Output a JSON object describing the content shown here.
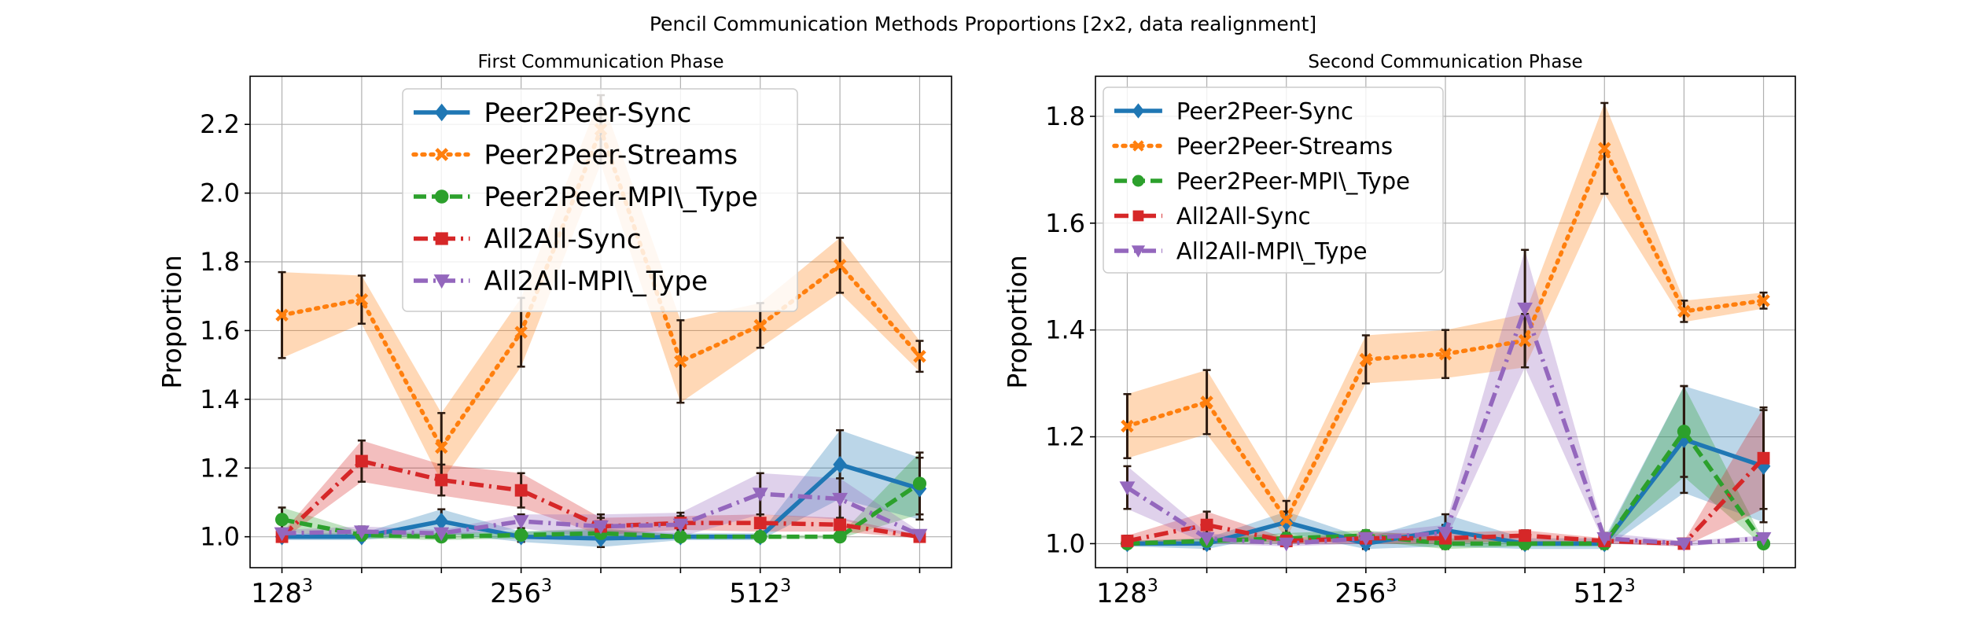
{
  "title": "Pencil Communication Methods Proportions [2x2, data realignment]",
  "colors": {
    "Peer2Peer-Sync": "#1f77b4",
    "Peer2Peer-Streams": "#ff7f0e",
    "Peer2Peer-MPI\\_Type": "#2ca02c",
    "All2All-Sync": "#d62728",
    "All2All-MPI\\_Type": "#9467bd"
  },
  "chart_data": [
    {
      "type": "line",
      "title": "First Communication Phase",
      "ylabel": "Proportion",
      "xlabel": "",
      "x": [
        0,
        1,
        2,
        3,
        4,
        5,
        6,
        7,
        8
      ],
      "xticks": [
        {
          "pos": 0,
          "base": "128",
          "exp": "3"
        },
        {
          "pos": 3,
          "base": "256",
          "exp": "3"
        },
        {
          "pos": 6,
          "base": "512",
          "exp": "3"
        }
      ],
      "yticks": [
        "1.0",
        "1.2",
        "1.4",
        "1.6",
        "1.8",
        "2.0",
        "2.2"
      ],
      "ylim": [
        0.91,
        2.34
      ],
      "grid": true,
      "legend_position": "top-center",
      "series": [
        {
          "name": "Peer2Peer-Sync",
          "values": [
            1.0,
            1.0,
            1.045,
            1.0,
            0.995,
            1.0,
            1.0,
            1.21,
            1.14
          ],
          "err": [
            0.01,
            0.01,
            0.035,
            0.015,
            0.025,
            0.01,
            0.01,
            0.1,
            0.09
          ],
          "style": "solid",
          "marker": "diamond"
        },
        {
          "name": "Peer2Peer-Streams",
          "values": [
            1.645,
            1.69,
            1.26,
            1.595,
            2.185,
            1.51,
            1.615,
            1.79,
            1.525
          ],
          "err": [
            0.125,
            0.07,
            0.1,
            0.1,
            0.1,
            0.12,
            0.065,
            0.08,
            0.045
          ],
          "style": "dotted",
          "marker": "x"
        },
        {
          "name": "Peer2Peer-MPI\\_Type",
          "values": [
            1.05,
            1.005,
            1.0,
            1.005,
            1.01,
            1.0,
            1.0,
            1.0,
            1.155
          ],
          "err": [
            0.035,
            0.01,
            0.01,
            0.01,
            0.015,
            0.005,
            0.005,
            0.005,
            0.09
          ],
          "style": "dashed",
          "marker": "circle"
        },
        {
          "name": "All2All-Sync",
          "values": [
            1.0,
            1.22,
            1.165,
            1.135,
            1.03,
            1.04,
            1.04,
            1.035,
            1.0
          ],
          "err": [
            0.01,
            0.06,
            0.045,
            0.05,
            0.025,
            0.02,
            0.025,
            0.02,
            0.005
          ],
          "style": "dashdot",
          "marker": "square"
        },
        {
          "name": "All2All-MPI\\_Type",
          "values": [
            1.01,
            1.015,
            1.01,
            1.045,
            1.03,
            1.035,
            1.125,
            1.11,
            1.005
          ],
          "err": [
            0.01,
            0.015,
            0.01,
            0.02,
            0.035,
            0.035,
            0.06,
            0.06,
            0.01
          ],
          "style": "dashdot",
          "marker": "triangle-down"
        }
      ]
    },
    {
      "type": "line",
      "title": "Second Communication Phase",
      "ylabel": "Proportion",
      "xlabel": "",
      "x": [
        0,
        1,
        2,
        3,
        4,
        5,
        6,
        7,
        8
      ],
      "xticks": [
        {
          "pos": 0,
          "base": "128",
          "exp": "3"
        },
        {
          "pos": 3,
          "base": "256",
          "exp": "3"
        },
        {
          "pos": 6,
          "base": "512",
          "exp": "3"
        }
      ],
      "yticks": [
        "1.0",
        "1.2",
        "1.4",
        "1.6",
        "1.8"
      ],
      "ylim": [
        0.955,
        1.875
      ],
      "grid": true,
      "legend_position": "top-left",
      "series": [
        {
          "name": "Peer2Peer-Sync",
          "values": [
            1.0,
            1.0,
            1.04,
            1.0,
            1.025,
            1.0,
            1.0,
            1.195,
            1.145
          ],
          "err": [
            0.005,
            0.01,
            0.02,
            0.01,
            0.03,
            0.01,
            0.01,
            0.1,
            0.105
          ],
          "style": "solid",
          "marker": "diamond"
        },
        {
          "name": "Peer2Peer-Streams",
          "values": [
            1.22,
            1.265,
            1.045,
            1.345,
            1.355,
            1.38,
            1.74,
            1.435,
            1.455
          ],
          "err": [
            0.06,
            0.06,
            0.035,
            0.045,
            0.045,
            0.05,
            0.085,
            0.02,
            0.015
          ],
          "style": "dotted",
          "marker": "x"
        },
        {
          "name": "Peer2Peer-MPI\\_Type",
          "values": [
            1.0,
            1.005,
            1.01,
            1.015,
            1.0,
            1.0,
            1.0,
            1.21,
            1.0
          ],
          "err": [
            0.005,
            0.005,
            0.01,
            0.01,
            0.01,
            0.005,
            0.005,
            0.085,
            0.005
          ],
          "style": "dashed",
          "marker": "circle"
        },
        {
          "name": "All2All-Sync",
          "values": [
            1.005,
            1.035,
            1.005,
            1.01,
            1.01,
            1.015,
            1.005,
            1.0,
            1.16
          ],
          "err": [
            0.01,
            0.025,
            0.005,
            0.01,
            0.01,
            0.01,
            0.005,
            0.005,
            0.095
          ],
          "style": "dashdot",
          "marker": "square"
        },
        {
          "name": "All2All-MPI\\_Type",
          "values": [
            1.105,
            1.01,
            1.0,
            1.01,
            1.02,
            1.44,
            1.01,
            1.0,
            1.01
          ],
          "err": [
            0.04,
            0.01,
            0.005,
            0.01,
            0.015,
            0.11,
            0.01,
            0.005,
            0.005
          ],
          "style": "dashdot",
          "marker": "triangle-down"
        }
      ]
    }
  ]
}
